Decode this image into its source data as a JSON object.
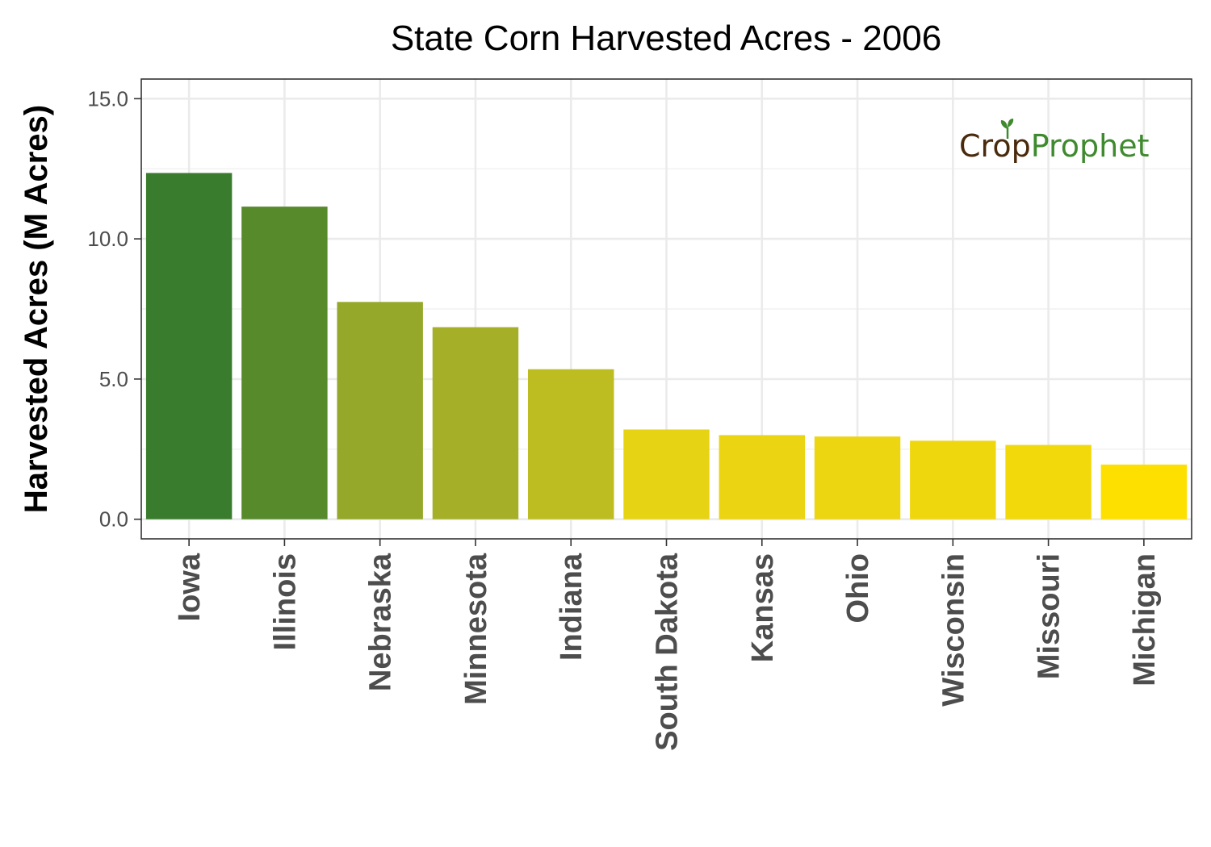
{
  "chart_data": {
    "type": "bar",
    "title": "State Corn Harvested Acres - 2006",
    "xlabel": "",
    "ylabel": "Harvested Acres (M Acres)",
    "ylim": [
      -0.7,
      15.7
    ],
    "yticks": [
      0.0,
      5.0,
      10.0,
      15.0
    ],
    "ytick_labels": [
      "0.0",
      "5.0",
      "10.0",
      "15.0"
    ],
    "grid": true,
    "categories": [
      "Iowa",
      "Illinois",
      "Nebraska",
      "Minnesota",
      "Indiana",
      "South Dakota",
      "Kansas",
      "Ohio",
      "Wisconsin",
      "Missouri",
      "Michigan"
    ],
    "values": [
      12.35,
      11.15,
      7.75,
      6.85,
      5.35,
      3.2,
      3.0,
      2.95,
      2.8,
      2.65,
      1.95
    ],
    "colors": [
      "#3a7c2d",
      "#568a2b",
      "#95a82a",
      "#a5b028",
      "#bdbd22",
      "#e6d314",
      "#ebd412",
      "#ecd511",
      "#efd70e",
      "#f2d90b",
      "#fee000"
    ]
  },
  "logo": {
    "part1": "Cr",
    "part2": "o",
    "part3": "p",
    "part4": "Prophet",
    "color_dark": "#4a2a0c",
    "color_green": "#3f8a2f"
  }
}
